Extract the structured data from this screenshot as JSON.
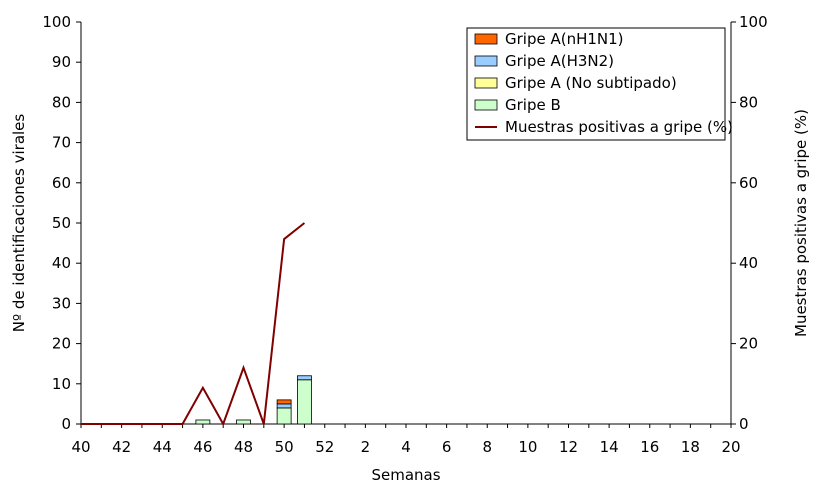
{
  "chart_data": {
    "type": "bar",
    "stacked": true,
    "title": "",
    "xlabel": "Semanas",
    "ylabel_left": "Nº de identificaciones virales",
    "ylabel_right": "Muestras positivas a gripe (%)",
    "ylim_left": [
      0,
      100
    ],
    "ylim_right": [
      0,
      100
    ],
    "y_ticks_left": [
      "0",
      "10",
      "20",
      "30",
      "40",
      "50",
      "60",
      "70",
      "80",
      "90",
      "100"
    ],
    "y_ticks_right": [
      "0",
      "20",
      "40",
      "60",
      "80",
      "100"
    ],
    "categories": [
      "40",
      "41",
      "42",
      "43",
      "44",
      "45",
      "46",
      "47",
      "48",
      "49",
      "50",
      "51",
      "52",
      "1",
      "2",
      "3",
      "4",
      "5",
      "6",
      "7",
      "8",
      "9",
      "10",
      "11",
      "12",
      "13",
      "14",
      "15",
      "16",
      "17",
      "18",
      "19",
      "20"
    ],
    "x_tick_labels": [
      "40",
      "42",
      "44",
      "46",
      "48",
      "50",
      "52",
      "2",
      "4",
      "6",
      "8",
      "10",
      "12",
      "14",
      "16",
      "18",
      "20"
    ],
    "series": [
      {
        "name": "Gripe B",
        "color": "#ccffcc",
        "values": [
          0,
          0,
          0,
          0,
          0,
          0,
          1,
          0,
          1,
          0,
          4,
          11,
          0,
          0,
          0,
          0,
          0,
          0,
          0,
          0,
          0,
          0,
          0,
          0,
          0,
          0,
          0,
          0,
          0,
          0,
          0,
          0,
          0
        ]
      },
      {
        "name": "Gripe A (No subtipado)",
        "color": "#ffff99",
        "values": [
          0,
          0,
          0,
          0,
          0,
          0,
          0,
          0,
          0,
          0,
          0,
          0,
          0,
          0,
          0,
          0,
          0,
          0,
          0,
          0,
          0,
          0,
          0,
          0,
          0,
          0,
          0,
          0,
          0,
          0,
          0,
          0,
          0
        ]
      },
      {
        "name": "Gripe A(H3N2)",
        "color": "#99ccff",
        "values": [
          0,
          0,
          0,
          0,
          0,
          0,
          0,
          0,
          0,
          0,
          1,
          1,
          0,
          0,
          0,
          0,
          0,
          0,
          0,
          0,
          0,
          0,
          0,
          0,
          0,
          0,
          0,
          0,
          0,
          0,
          0,
          0,
          0
        ]
      },
      {
        "name": "Gripe A(nH1N1)",
        "color": "#ff6600",
        "values": [
          0,
          0,
          0,
          0,
          0,
          0,
          0,
          0,
          0,
          0,
          1,
          0,
          0,
          0,
          0,
          0,
          0,
          0,
          0,
          0,
          0,
          0,
          0,
          0,
          0,
          0,
          0,
          0,
          0,
          0,
          0,
          0,
          0
        ]
      }
    ],
    "line": {
      "name": "Muestras positivas a gripe (%)",
      "color": "#800000",
      "axis": "right",
      "values": [
        0,
        0,
        0,
        0,
        0,
        0,
        9,
        0,
        14,
        0,
        46,
        50
      ]
    },
    "legend": {
      "placement": "top-right",
      "order": [
        "Gripe A(nH1N1)",
        "Gripe A(H3N2)",
        "Gripe A (No subtipado)",
        "Gripe B",
        "Muestras positivas a gripe (%)"
      ]
    },
    "grid": false
  }
}
